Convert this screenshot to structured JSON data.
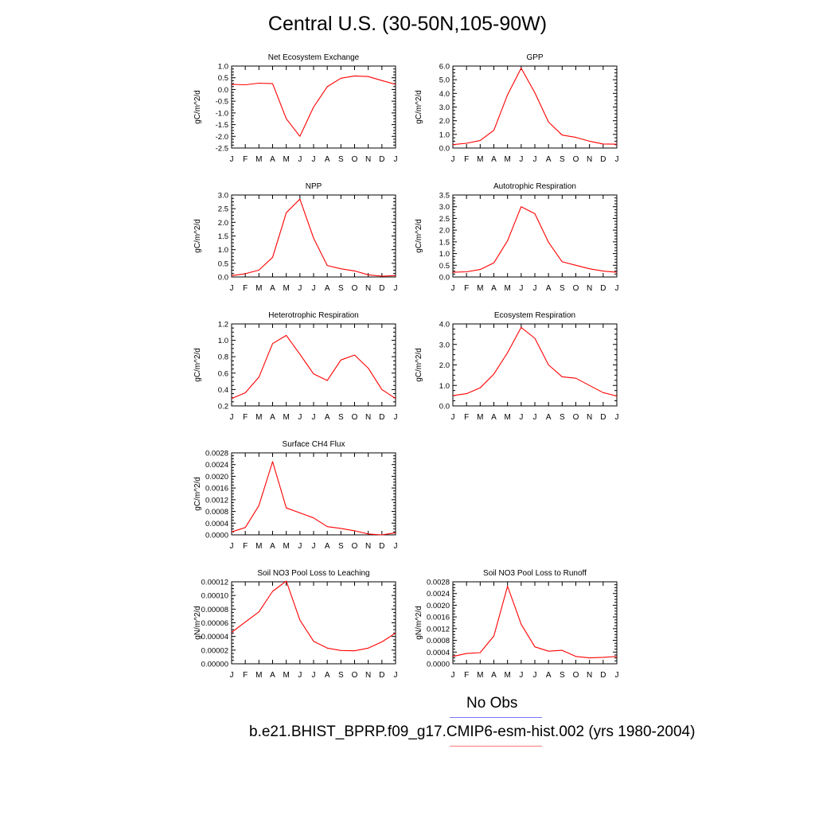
{
  "title": "Central U.S. (30-50N,105-90W)",
  "months": [
    "J",
    "F",
    "M",
    "A",
    "M",
    "J",
    "J",
    "A",
    "S",
    "O",
    "N",
    "D",
    "J"
  ],
  "chart_data": [
    {
      "type": "line",
      "title": "Net Ecosystem Exchange",
      "xlabel": "",
      "ylabel": "gC/m^2/d",
      "ylim": [
        -2.5,
        1.0
      ],
      "yticks": [
        1.0,
        0.5,
        0.0,
        -0.5,
        -1.0,
        -1.5,
        -2.0,
        -2.5
      ],
      "yticklabels": [
        "1.0",
        "0.5",
        "0.0",
        "-0.5",
        "-1.0",
        "-1.5",
        "-2.0",
        "-2.5"
      ],
      "categories": [
        "J",
        "F",
        "M",
        "A",
        "M",
        "J",
        "J",
        "A",
        "S",
        "O",
        "N",
        "D",
        "J"
      ],
      "series": [
        {
          "values": [
            0.22,
            0.2,
            0.27,
            0.25,
            -1.25,
            -2.0,
            -0.75,
            0.12,
            0.48,
            0.58,
            0.55,
            0.38,
            0.22
          ],
          "color": "#ff0000"
        }
      ]
    },
    {
      "type": "line",
      "title": "GPP",
      "xlabel": "",
      "ylabel": "gC/m^2/d",
      "ylim": [
        0,
        6
      ],
      "yticks": [
        6,
        5,
        4,
        3,
        2,
        1,
        0
      ],
      "yticklabels": [
        "6.0",
        "5.0",
        "4.0",
        "3.0",
        "2.0",
        "1.0",
        "0.0"
      ],
      "categories": [
        "J",
        "F",
        "M",
        "A",
        "M",
        "J",
        "J",
        "A",
        "S",
        "O",
        "N",
        "D",
        "J"
      ],
      "series": [
        {
          "values": [
            0.25,
            0.35,
            0.55,
            1.3,
            3.9,
            5.85,
            4.05,
            1.9,
            0.95,
            0.78,
            0.5,
            0.3,
            0.28
          ],
          "color": "#ff0000"
        }
      ]
    },
    {
      "type": "line",
      "title": "NPP",
      "xlabel": "",
      "ylabel": "gC/m^2/d",
      "ylim": [
        0,
        3
      ],
      "yticks": [
        3.0,
        2.5,
        2.0,
        1.5,
        1.0,
        0.5,
        0.0
      ],
      "yticklabels": [
        "3.0",
        "2.5",
        "2.0",
        "1.5",
        "1.0",
        "0.5",
        "0.0"
      ],
      "categories": [
        "J",
        "F",
        "M",
        "A",
        "M",
        "J",
        "J",
        "A",
        "S",
        "O",
        "N",
        "D",
        "J"
      ],
      "series": [
        {
          "values": [
            0.05,
            0.12,
            0.25,
            0.72,
            2.35,
            2.85,
            1.42,
            0.42,
            0.3,
            0.22,
            0.08,
            0.03,
            0.05
          ],
          "color": "#ff0000"
        }
      ]
    },
    {
      "type": "line",
      "title": "Autotrophic Respiration",
      "xlabel": "",
      "ylabel": "gC/m^2/d",
      "ylim": [
        0,
        3.5
      ],
      "yticks": [
        3.5,
        3.0,
        2.5,
        2.0,
        1.5,
        1.0,
        0.5,
        0.0
      ],
      "yticklabels": [
        "3.5",
        "3.0",
        "2.5",
        "2.0",
        "1.5",
        "1.0",
        "0.5",
        "0.0"
      ],
      "categories": [
        "J",
        "F",
        "M",
        "A",
        "M",
        "J",
        "J",
        "A",
        "S",
        "O",
        "N",
        "D",
        "J"
      ],
      "series": [
        {
          "values": [
            0.2,
            0.22,
            0.32,
            0.6,
            1.55,
            3.0,
            2.7,
            1.48,
            0.65,
            0.5,
            0.35,
            0.25,
            0.2
          ],
          "color": "#ff0000"
        }
      ]
    },
    {
      "type": "line",
      "title": "Heterotrophic Respiration",
      "xlabel": "",
      "ylabel": "gC/m^2/d",
      "ylim": [
        0.2,
        1.2
      ],
      "yticks": [
        1.2,
        1.0,
        0.8,
        0.6,
        0.4,
        0.2
      ],
      "yticklabels": [
        "1.2",
        "1.0",
        "0.8",
        "0.6",
        "0.4",
        "0.2"
      ],
      "categories": [
        "J",
        "F",
        "M",
        "A",
        "M",
        "J",
        "J",
        "A",
        "S",
        "O",
        "N",
        "D",
        "J"
      ],
      "series": [
        {
          "values": [
            0.29,
            0.36,
            0.55,
            0.96,
            1.06,
            0.83,
            0.59,
            0.51,
            0.76,
            0.82,
            0.66,
            0.4,
            0.29
          ],
          "color": "#ff0000"
        }
      ]
    },
    {
      "type": "line",
      "title": "Ecosystem Respiration",
      "xlabel": "",
      "ylabel": "gC/m^2/d",
      "ylim": [
        0,
        4
      ],
      "yticks": [
        4.0,
        3.0,
        2.0,
        1.0,
        0.0
      ],
      "yticklabels": [
        "4.0",
        "3.0",
        "2.0",
        "1.0",
        "0.0"
      ],
      "categories": [
        "J",
        "F",
        "M",
        "A",
        "M",
        "J",
        "J",
        "A",
        "S",
        "O",
        "N",
        "D",
        "J"
      ],
      "series": [
        {
          "values": [
            0.5,
            0.6,
            0.88,
            1.55,
            2.6,
            3.83,
            3.3,
            2.0,
            1.42,
            1.35,
            1.0,
            0.65,
            0.48
          ],
          "color": "#ff0000"
        }
      ]
    },
    {
      "type": "line",
      "title": "Surface CH4 Flux",
      "xlabel": "",
      "ylabel": "gC/m^2/d",
      "ylim": [
        0,
        0.0028
      ],
      "yticks": [
        0.0028,
        0.0024,
        0.002,
        0.0016,
        0.0012,
        0.0008,
        0.0004,
        0.0
      ],
      "yticklabels": [
        "0.0028",
        "0.0024",
        "0.0020",
        "0.0016",
        "0.0012",
        "0.0008",
        "0.0004",
        "0.0000"
      ],
      "categories": [
        "J",
        "F",
        "M",
        "A",
        "M",
        "J",
        "J",
        "A",
        "S",
        "O",
        "N",
        "D",
        "J"
      ],
      "series": [
        {
          "values": [
            0.0001,
            0.00025,
            0.001,
            0.0025,
            0.00092,
            0.00075,
            0.00058,
            0.00028,
            0.00022,
            0.00014,
            3e-05,
            0.0,
            7e-05
          ],
          "color": "#ff0000"
        }
      ]
    },
    {
      "type": "line",
      "title": "Soil NO3 Pool Loss to Leaching",
      "xlabel": "",
      "ylabel": "gN/m^2/d",
      "ylim": [
        0,
        0.00012
      ],
      "yticks": [
        0.00012,
        0.0001,
        8e-05,
        6e-05,
        4e-05,
        2e-05,
        0.0
      ],
      "yticklabels": [
        "0.00012",
        "0.00010",
        "0.00008",
        "0.00006",
        "0.00004",
        "0.00002",
        "0.00000"
      ],
      "categories": [
        "J",
        "F",
        "M",
        "A",
        "M",
        "J",
        "J",
        "A",
        "S",
        "O",
        "N",
        "D",
        "J"
      ],
      "series": [
        {
          "values": [
            4.6e-05,
            6.1e-05,
            7.6e-05,
            0.000106,
            0.000121,
            6.4e-05,
            3.3e-05,
            2.3e-05,
            1.95e-05,
            1.9e-05,
            2.3e-05,
            3.2e-05,
            4.5e-05
          ],
          "color": "#ff0000"
        }
      ]
    },
    {
      "type": "line",
      "title": "Soil NO3 Pool Loss to Runoff",
      "xlabel": "",
      "ylabel": "gN/m^2/d",
      "ylim": [
        0,
        0.0028
      ],
      "yticks": [
        0.0028,
        0.0024,
        0.002,
        0.0016,
        0.0012,
        0.0008,
        0.0004,
        0.0
      ],
      "yticklabels": [
        "0.0028",
        "0.0024",
        "0.0020",
        "0.0016",
        "0.0012",
        "0.0008",
        "0.0004",
        "0.0000"
      ],
      "categories": [
        "J",
        "F",
        "M",
        "A",
        "M",
        "J",
        "J",
        "A",
        "S",
        "O",
        "N",
        "D",
        "J"
      ],
      "series": [
        {
          "values": [
            0.00025,
            0.00035,
            0.00038,
            0.00095,
            0.00265,
            0.00135,
            0.00058,
            0.00043,
            0.00046,
            0.00025,
            0.0002,
            0.00022,
            0.00025
          ],
          "color": "#ff0000"
        }
      ]
    }
  ],
  "legend": {
    "no_obs_label": "No Obs",
    "no_obs_color": "#7777ff",
    "case_label": "b.e21.BHIST_BPRP.f09_g17.CMIP6-esm-hist.002 (yrs 1980-2004)",
    "case_color": "#ff7777"
  }
}
